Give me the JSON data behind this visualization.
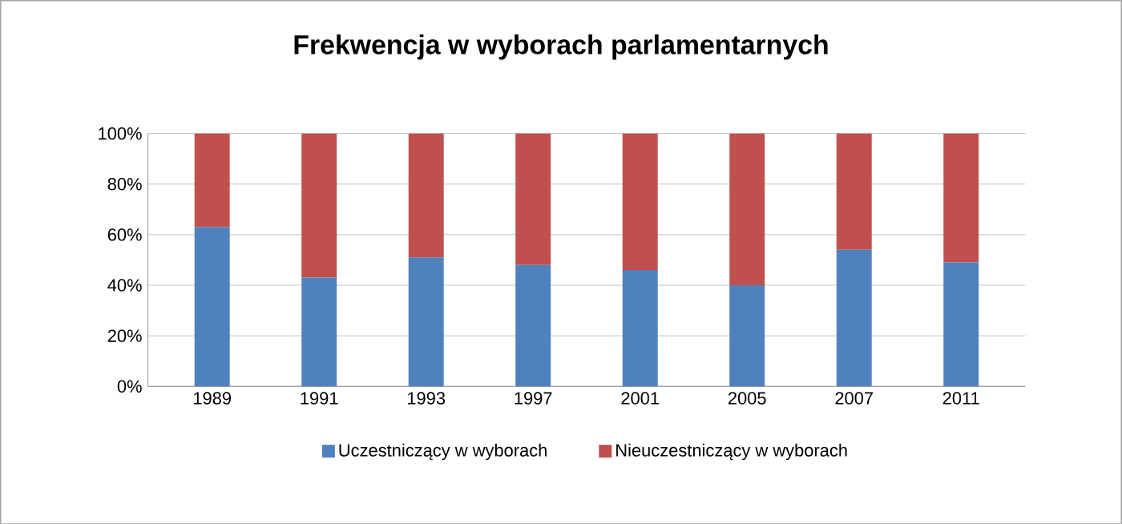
{
  "chart_data": {
    "type": "bar",
    "stacked": true,
    "title": "Frekwencja w wyborach parlamentarnych",
    "categories": [
      "1989",
      "1991",
      "1993",
      "1997",
      "2001",
      "2005",
      "2007",
      "2011"
    ],
    "series": [
      {
        "name": "Uczestniczący w wyborach",
        "color": "#4f81bd",
        "values": [
          63,
          43,
          51,
          48,
          46,
          40,
          54,
          49
        ]
      },
      {
        "name": "Nieuczestniczący w wyborach",
        "color": "#c0504d",
        "values": [
          37,
          57,
          49,
          52,
          54,
          60,
          46,
          51
        ]
      }
    ],
    "ylim": [
      0,
      100
    ],
    "yticks": [
      {
        "value": 0,
        "label": "0%"
      },
      {
        "value": 20,
        "label": "20%"
      },
      {
        "value": 40,
        "label": "40%"
      },
      {
        "value": 60,
        "label": "60%"
      },
      {
        "value": 80,
        "label": "80%"
      },
      {
        "value": 100,
        "label": "100%"
      }
    ],
    "grid": "y",
    "legend": "bottom"
  }
}
